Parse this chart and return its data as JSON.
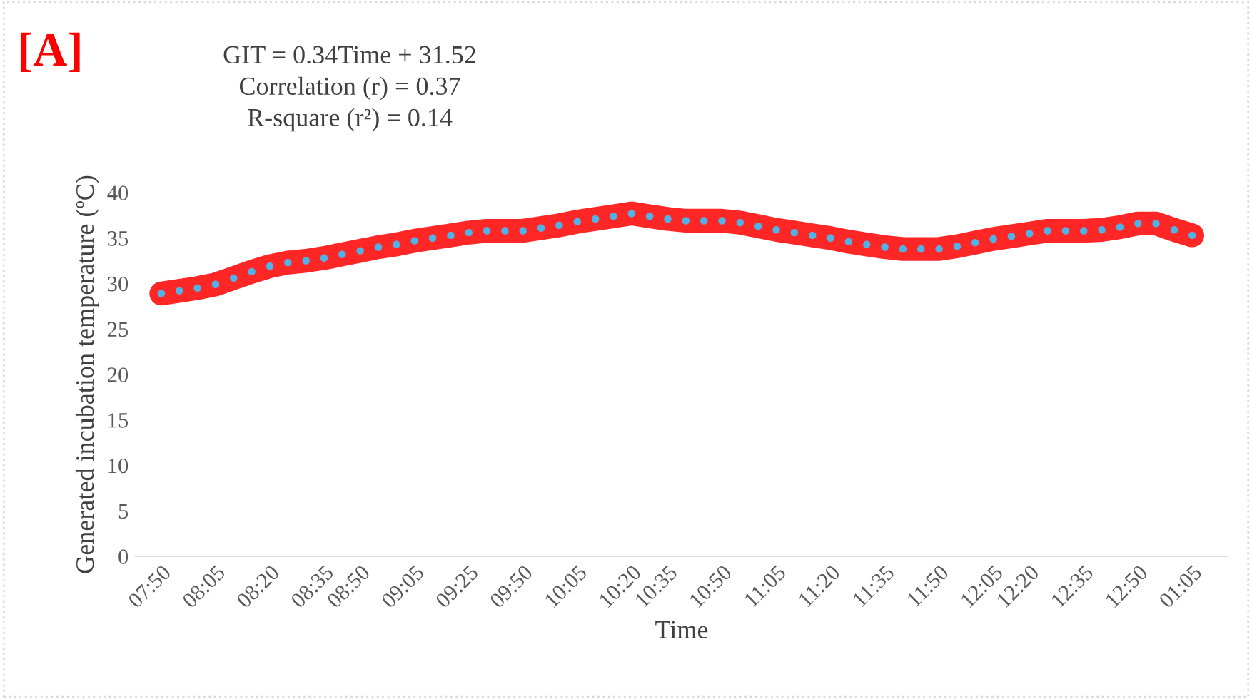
{
  "chart_data": {
    "type": "line",
    "xlabel": "Time",
    "ylabel": "Generated incubation temperature (ºC)",
    "annotations": [
      "[A]",
      "GIT = 0.34Time + 31.52",
      "Correlation (r) = 0.37",
      "R-square (r²) = 0.14"
    ],
    "categories": [
      "07:50",
      null,
      null,
      "08:05",
      null,
      null,
      "08:20",
      null,
      null,
      "08:35",
      null,
      "08:50",
      null,
      null,
      "09:05",
      null,
      null,
      "09:25",
      null,
      null,
      "09:50",
      null,
      null,
      "10:05",
      null,
      null,
      "10:20",
      null,
      "10:35",
      null,
      null,
      "10:50",
      null,
      null,
      "11:05",
      null,
      null,
      "11:20",
      null,
      null,
      "11:35",
      null,
      null,
      "11:50",
      null,
      null,
      "12:05",
      null,
      "12:20",
      null,
      null,
      "12:35",
      null,
      null,
      "12:50",
      null,
      null,
      "01:05"
    ],
    "series": [
      {
        "color": "#ff0000",
        "colors": [
          "#4fb3e8",
          "#4fb3e8",
          "#4fb3e8",
          "#4fb3e8",
          "#4fb3e8",
          "#4fb3e8",
          "#4fb3e8",
          "#4fb3e8",
          "#4fb3e8",
          "#4fb3e8",
          "#4fb3e8",
          "#4fb3e8",
          "#4fb3e8",
          "#4fb3e8",
          "#4fb3e8",
          "#4fb3e8",
          "#4fb3e8",
          "#4fb3e8",
          "#4fb3e8",
          "#4fb3e8",
          "#4fb3e8",
          "#4fb3e8",
          "#4fb3e8",
          "#4fb3e8",
          "#4fb3e8",
          "#4fb3e8",
          "#4fb3e8",
          "#4fb3e8",
          "#4fb3e8",
          "#4fb3e8",
          "#4fb3e8",
          "#4fb3e8",
          "#4fb3e8",
          "#4fb3e8",
          "#4fb3e8",
          "#4fb3e8",
          "#4fb3e8",
          "#4fb3e8",
          "#4fb3e8",
          "#4fb3e8",
          "#4fb3e8",
          "#4fb3e8",
          "#4fb3e8",
          "#4fb3e8",
          "#4fb3e8",
          "#4fb3e8",
          "#4fb3e8",
          "#4fb3e8",
          "#4fb3e8",
          "#4fb3e8",
          "#4fb3e8",
          "#4fb3e8",
          "#4fb3e8",
          "#4fb3e8",
          "#4fb3e8",
          "#4fb3e8",
          "#4fb3e8",
          "#4fb3e8"
        ],
        "values": [
          28.9,
          29.2,
          29.5,
          29.9,
          30.6,
          31.3,
          31.9,
          32.3,
          32.5,
          32.8,
          33.2,
          33.6,
          34.0,
          34.3,
          34.7,
          35.0,
          35.3,
          35.6,
          35.8,
          35.8,
          35.8,
          36.1,
          36.4,
          36.8,
          37.1,
          37.4,
          37.7,
          37.4,
          37.1,
          36.9,
          36.9,
          36.9,
          36.7,
          36.3,
          35.9,
          35.6,
          35.3,
          35.0,
          34.6,
          34.3,
          34.0,
          33.8,
          33.8,
          33.8,
          34.1,
          34.5,
          34.9,
          35.2,
          35.5,
          35.8,
          35.8,
          35.8,
          35.9,
          36.2,
          36.6,
          36.6,
          35.9,
          35.3
        ]
      }
    ],
    "ylim": [
      0,
      40
    ],
    "yticks": [
      0,
      5,
      10,
      15,
      20,
      25,
      30,
      35,
      40
    ],
    "grid": false,
    "legend": false,
    "marker": "circle",
    "line_style": "solid"
  }
}
